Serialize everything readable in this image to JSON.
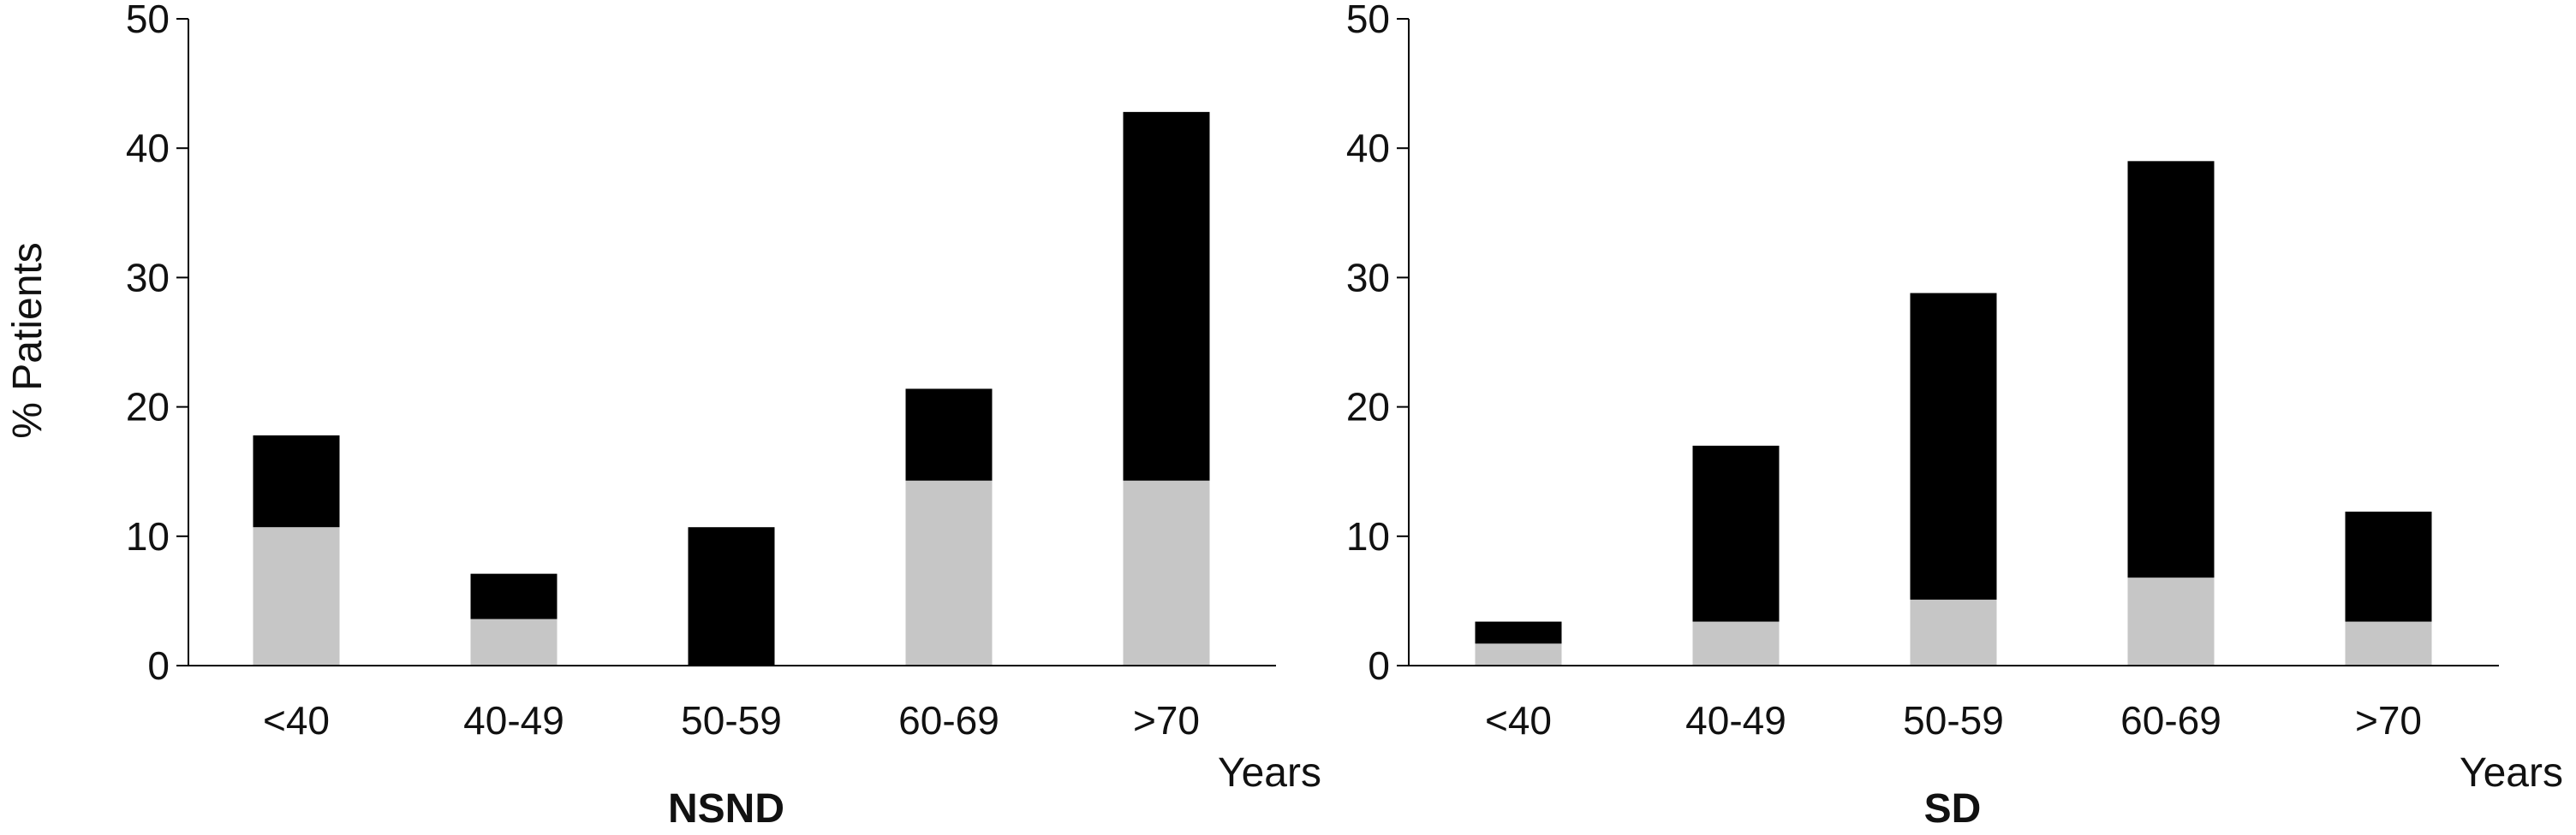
{
  "figure": {
    "ylabel": "% Patients"
  },
  "chart_data": [
    {
      "type": "bar",
      "stacked": true,
      "title": "NSND",
      "xlabel": "Years",
      "ylabel": "% Patients",
      "categories": [
        "<40",
        "40-49",
        "50-59",
        "60-69",
        ">70"
      ],
      "ylim": [
        0,
        50
      ],
      "yticks": [
        0,
        10,
        20,
        30,
        40,
        50
      ],
      "grid": false,
      "series": [
        {
          "color": "#c6c6c6",
          "values": [
            10.7,
            3.6,
            0,
            14.3,
            14.3
          ]
        },
        {
          "color": "#000000",
          "values": [
            7.1,
            3.5,
            10.7,
            7.1,
            28.5
          ]
        }
      ]
    },
    {
      "type": "bar",
      "stacked": true,
      "title": "SD",
      "xlabel": "Years",
      "ylabel": "",
      "categories": [
        "<40",
        "40-49",
        "50-59",
        "60-69",
        ">70"
      ],
      "ylim": [
        0,
        50
      ],
      "yticks": [
        0,
        10,
        20,
        30,
        40,
        50
      ],
      "grid": false,
      "series": [
        {
          "color": "#c6c6c6",
          "values": [
            1.7,
            3.4,
            5.1,
            6.8,
            3.4
          ]
        },
        {
          "color": "#000000",
          "values": [
            1.7,
            13.6,
            23.7,
            32.2,
            8.5
          ]
        }
      ]
    }
  ]
}
